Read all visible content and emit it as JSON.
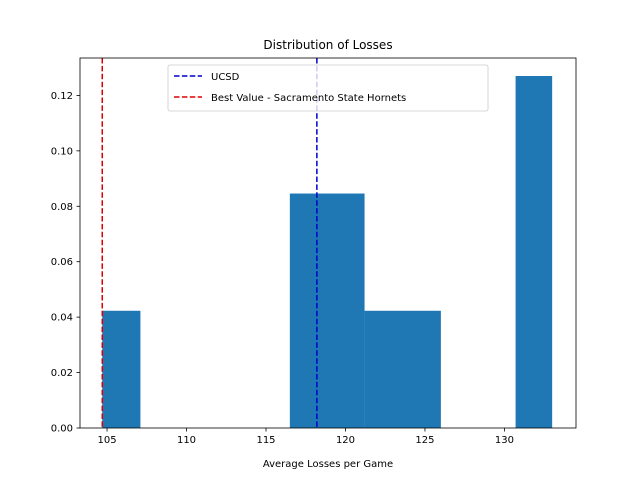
{
  "chart_data": {
    "type": "bar",
    "subtype": "histogram",
    "title": "Distribution of Losses",
    "xlabel": "Average Losses per Game",
    "ylabel": "",
    "xlim": [
      103.3,
      134.5
    ],
    "ylim": [
      0,
      0.1335
    ],
    "xticks": [
      105,
      110,
      115,
      120,
      125,
      130
    ],
    "yticks": [
      0.0,
      0.02,
      0.04,
      0.06,
      0.08,
      0.1,
      0.12
    ],
    "ytick_labels": [
      "0.00",
      "0.02",
      "0.04",
      "0.06",
      "0.08",
      "0.10",
      "0.12"
    ],
    "bar_color": "#1f77b4",
    "bins": [
      {
        "start": 104.7,
        "end": 107.1,
        "density": 0.0423
      },
      {
        "start": 107.1,
        "end": 109.6,
        "density": 0.0
      },
      {
        "start": 109.6,
        "end": 112.0,
        "density": 0.0
      },
      {
        "start": 112.0,
        "end": 114.1,
        "density": 0.0
      },
      {
        "start": 114.1,
        "end": 116.5,
        "density": 0.0
      },
      {
        "start": 116.5,
        "end": 121.2,
        "density": 0.0846
      },
      {
        "start": 121.2,
        "end": 126.0,
        "density": 0.0423
      },
      {
        "start": 126.0,
        "end": 130.7,
        "density": 0.0
      },
      {
        "start": 130.7,
        "end": 133.0,
        "density": 0.127
      }
    ],
    "reference_lines": [
      {
        "name": "UCSD",
        "x": 118.2,
        "color": "#0000cc",
        "style": "dashed"
      },
      {
        "name": "Best Value - Sacramento State Hornets",
        "x": 104.7,
        "color": "#dd0000",
        "style": "dashed"
      }
    ],
    "legend_placement": "top-center",
    "grid": false
  }
}
